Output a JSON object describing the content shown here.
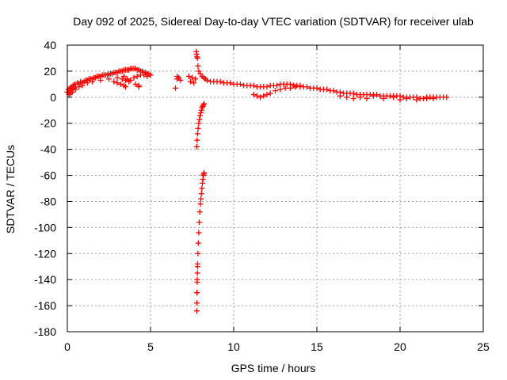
{
  "chart_data": {
    "type": "scatter",
    "title": "Day 092 of 2025, Sidereal Day-to-day VTEC variation (SDTVAR) for receiver ulab",
    "xlabel": "GPS time / hours",
    "ylabel": "SDTVAR / TECUs",
    "xlim": [
      0,
      25
    ],
    "ylim": [
      -180,
      40
    ],
    "xticks": [
      0,
      5,
      10,
      15,
      20,
      25
    ],
    "yticks": [
      -180,
      -160,
      -140,
      -120,
      -100,
      -80,
      -60,
      -40,
      -20,
      0,
      20,
      40
    ],
    "xtick_labels": [
      "0",
      "5",
      "10",
      "15",
      "20",
      "25"
    ],
    "ytick_labels": [
      "-180",
      "-160",
      "-140",
      "-120",
      "-100",
      "-80",
      "-60",
      "-40",
      "-20",
      "0",
      "20",
      "40"
    ],
    "grid": true,
    "marker": "+",
    "series": [
      {
        "name": "SDTVAR",
        "color": "#ff0000",
        "x": [
          0.0,
          0.05,
          0.1,
          0.15,
          0.2,
          0.25,
          0.3,
          0.35,
          0.4,
          0.45,
          0.5,
          0.6,
          0.7,
          0.8,
          0.9,
          1.0,
          1.1,
          1.2,
          1.3,
          1.4,
          1.5,
          1.6,
          1.7,
          1.8,
          1.9,
          2.0,
          2.1,
          2.2,
          2.3,
          2.4,
          2.5,
          2.6,
          2.7,
          2.8,
          2.9,
          3.0,
          3.1,
          3.2,
          3.3,
          3.4,
          3.5,
          3.6,
          3.7,
          3.8,
          3.9,
          4.0,
          4.1,
          4.2,
          4.3,
          4.4,
          4.5,
          4.6,
          4.7,
          4.8,
          4.9,
          5.0,
          0.1,
          0.2,
          0.3,
          0.5,
          0.7,
          0.9,
          1.2,
          1.5,
          2.0,
          2.5,
          3.0,
          3.3,
          3.5,
          3.7,
          4.0,
          4.2,
          4.4,
          4.6,
          4.8,
          2.8,
          3.0,
          3.2,
          3.4,
          3.6,
          3.8,
          4.1,
          4.3,
          3.5,
          3.4,
          4.3,
          6.5,
          6.6,
          6.7,
          6.8,
          7.4,
          7.5,
          7.6,
          7.7,
          6.6,
          7.3,
          7.75,
          7.77,
          7.8,
          7.82,
          7.85,
          7.9,
          8.0,
          8.1,
          8.2,
          8.3,
          8.4,
          8.6,
          8.8,
          9.0,
          9.2,
          9.4,
          9.6,
          9.8,
          10.0,
          10.2,
          10.4,
          10.6,
          10.8,
          11.0,
          11.2,
          11.4,
          11.6,
          11.8,
          12.0,
          12.2,
          12.4,
          12.6,
          12.8,
          13.0,
          13.2,
          13.4,
          13.6,
          13.8,
          14.0,
          14.2,
          14.4,
          14.6,
          14.8,
          15.0,
          15.2,
          15.4,
          15.6,
          15.8,
          16.0,
          16.2,
          16.4,
          11.2,
          11.4,
          11.6,
          11.8,
          12.0,
          12.2,
          12.5,
          12.8,
          13.1,
          13.4,
          13.7,
          14.0,
          16.6,
          16.8,
          17.0,
          17.2,
          17.4,
          17.6,
          17.8,
          18.0,
          18.2,
          18.4,
          18.6,
          18.8,
          19.0,
          19.2,
          19.4,
          19.6,
          19.8,
          20.0,
          20.2,
          20.4,
          20.6,
          20.8,
          21.0,
          21.2,
          21.4,
          21.6,
          21.8,
          22.0,
          22.2,
          22.4,
          22.6,
          22.8,
          16.4,
          16.8,
          17.2,
          17.6,
          18.0,
          18.4,
          19.0,
          19.6,
          20.0,
          20.4,
          21.0,
          21.6,
          22.0,
          7.78,
          7.8,
          7.83,
          7.86,
          7.9,
          7.94,
          7.98,
          8.02,
          8.06,
          8.1,
          8.14,
          8.18,
          8.22,
          7.78,
          7.79,
          7.8,
          7.81,
          7.82,
          7.83,
          7.85,
          7.87,
          7.9,
          7.93,
          7.96,
          8.0,
          8.03,
          8.06,
          8.09,
          8.12,
          8.15,
          8.18,
          8.2,
          8.22,
          7.79,
          7.81,
          7.83
        ],
        "y": [
          4,
          6,
          3,
          7,
          5,
          8,
          6,
          9,
          7,
          10,
          8,
          11,
          10,
          12,
          11,
          12,
          13,
          13,
          14,
          14,
          14,
          15,
          15,
          16,
          16,
          16,
          17,
          17,
          17,
          17,
          18,
          18,
          18,
          19,
          19,
          19,
          20,
          20,
          20,
          21,
          21,
          21,
          21,
          22,
          22,
          22,
          22,
          21,
          21,
          20,
          20,
          19,
          19,
          18,
          18,
          17,
          2,
          3,
          4,
          6,
          8,
          9,
          11,
          12,
          13,
          14,
          15,
          14,
          13,
          12,
          15,
          16,
          17,
          17,
          16,
          12,
          11,
          10,
          9,
          14,
          13,
          10,
          9,
          8,
          16,
          8,
          7,
          16,
          15,
          13,
          12,
          15,
          11,
          14,
          14,
          16,
          35,
          33,
          31,
          30,
          24,
          20,
          18,
          16,
          15,
          14,
          13,
          12,
          12,
          12,
          12,
          11,
          11,
          11,
          10,
          10,
          10,
          9,
          9,
          9,
          9,
          8,
          8,
          8,
          8,
          9,
          9,
          9,
          10,
          10,
          10,
          10,
          9,
          9,
          9,
          8,
          8,
          7,
          7,
          7,
          6,
          6,
          6,
          5,
          5,
          4,
          4,
          2,
          1,
          0,
          1,
          2,
          3,
          5,
          6,
          7,
          7,
          8,
          8,
          3,
          3,
          3,
          3,
          2,
          2,
          2,
          2,
          2,
          2,
          2,
          1,
          1,
          1,
          1,
          1,
          1,
          1,
          0,
          0,
          0,
          0,
          0,
          -1,
          -1,
          0,
          0,
          0,
          0,
          0,
          0,
          0,
          1,
          0,
          -1,
          0,
          -1,
          1,
          -1,
          0,
          -2,
          -1,
          -2,
          -1,
          -1,
          -38,
          -33,
          -28,
          -24,
          -20,
          -17,
          -14,
          -12,
          -10,
          -8,
          -7,
          -6,
          -5,
          -164,
          -158,
          -150,
          -142,
          -135,
          -128,
          -120,
          -112,
          -104,
          -96,
          -88,
          -82,
          -78,
          -74,
          -70,
          -66,
          -63,
          -60,
          -59,
          -58,
          -150,
          -140,
          -130
        ]
      }
    ]
  }
}
